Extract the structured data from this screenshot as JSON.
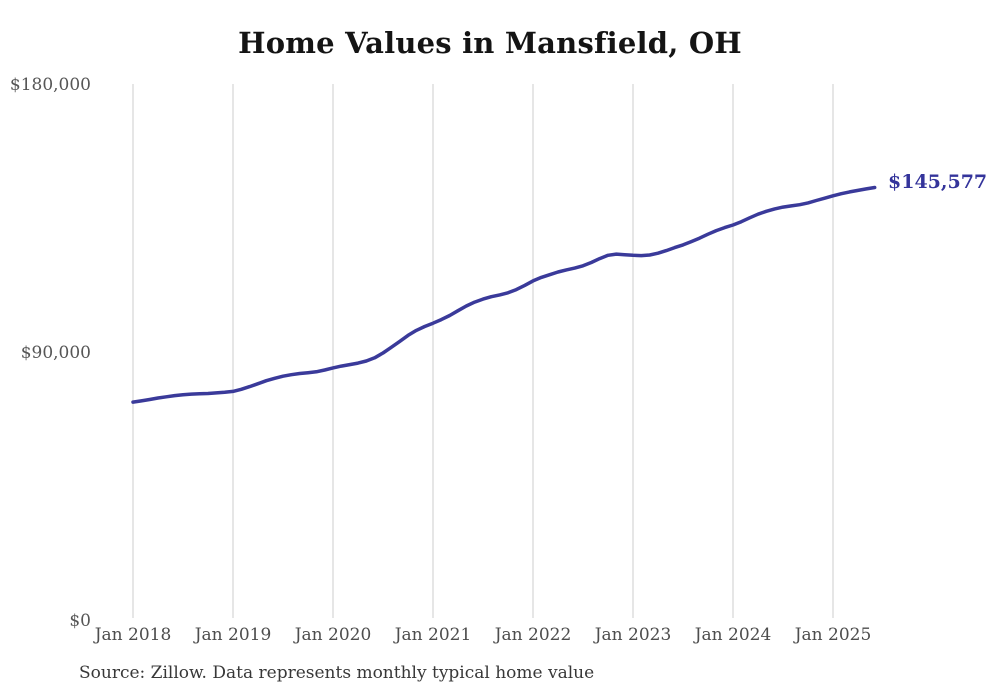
{
  "title": "Home Values in Mansfield, OH",
  "source_note": "Source: Zillow. Data represents monthly typical home value",
  "colors": {
    "line": "#3a3a9a",
    "end_label_text": "#34349b",
    "gridline": "#cccccc",
    "title_text": "#141414",
    "axis_text": "#4d4d4d",
    "background": "#ffffff"
  },
  "chart_data": {
    "type": "line",
    "title": "Home Values in Mansfield, OH",
    "xlabel": "",
    "ylabel": "",
    "unit": "USD",
    "ylim": [
      0,
      180000
    ],
    "y_ticks": [
      0,
      90000,
      180000
    ],
    "y_tick_labels": [
      "$0",
      "$90,000",
      "$180,000"
    ],
    "x_tick_labels": [
      "Jan 2018",
      "Jan 2019",
      "Jan 2020",
      "Jan 2021",
      "Jan 2022",
      "Jan 2023",
      "Jan 2024",
      "Jan 2025"
    ],
    "x_start_month": "2018-01",
    "x_end_month": "2025-06",
    "x_interval": "monthly",
    "grid": "vertical-only",
    "legend": "none",
    "end_label": "$145,577",
    "end_value": 145577,
    "series_name": "Typical home value",
    "values": [
      73500,
      73900,
      74400,
      74900,
      75300,
      75700,
      76000,
      76200,
      76300,
      76400,
      76600,
      76800,
      77100,
      77800,
      78700,
      79700,
      80700,
      81500,
      82200,
      82700,
      83100,
      83400,
      83700,
      84300,
      85000,
      85600,
      86100,
      86600,
      87300,
      88400,
      90000,
      91900,
      93900,
      95900,
      97600,
      98900,
      100000,
      101200,
      102600,
      104200,
      105800,
      107100,
      108100,
      108900,
      109500,
      110200,
      111300,
      112700,
      114200,
      115400,
      116300,
      117200,
      117900,
      118500,
      119300,
      120400,
      121700,
      122800,
      123200,
      123000,
      122800,
      122700,
      122900,
      123500,
      124400,
      125400,
      126300,
      127400,
      128600,
      129900,
      131100,
      132100,
      133000,
      134100,
      135400,
      136600,
      137600,
      138400,
      139000,
      139400,
      139800,
      140400,
      141200,
      142000,
      142800,
      143500,
      144100,
      144600,
      145100,
      145577
    ]
  }
}
